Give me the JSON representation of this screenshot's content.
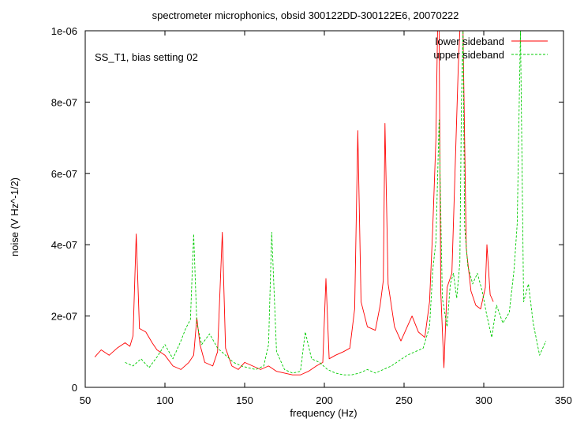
{
  "chart_data": {
    "type": "line",
    "title": "spectrometer microphonics, obsid 300122DD-300122E6, 20070222",
    "annotation": "SS_T1, bias setting 02",
    "xlabel": "frequency (Hz)",
    "ylabel": "noise (V Hz^-1/2)",
    "xlim": [
      50,
      350
    ],
    "ylim": [
      0,
      1e-06
    ],
    "x_ticks": [
      {
        "value": 50,
        "label": "50"
      },
      {
        "value": 100,
        "label": "100"
      },
      {
        "value": 150,
        "label": "150"
      },
      {
        "value": 200,
        "label": "200"
      },
      {
        "value": 250,
        "label": "250"
      },
      {
        "value": 300,
        "label": "300"
      },
      {
        "value": 350,
        "label": "350"
      }
    ],
    "y_ticks": [
      {
        "value": 0,
        "label": "0"
      },
      {
        "value": 2e-07,
        "label": "2e-07"
      },
      {
        "value": 4e-07,
        "label": "4e-07"
      },
      {
        "value": 6e-07,
        "label": "6e-07"
      },
      {
        "value": 8e-07,
        "label": "8e-07"
      },
      {
        "value": 1e-06,
        "label": "1e-06"
      }
    ],
    "grid": false,
    "legend_position": "top-right",
    "series": [
      {
        "name": "lower sideband",
        "color": "#ff0000",
        "dash": "solid",
        "x": [
          56,
          60,
          65,
          70,
          75,
          78,
          80,
          82,
          84,
          88,
          92,
          95,
          100,
          105,
          110,
          115,
          118,
          120,
          122,
          125,
          130,
          133,
          136,
          138,
          142,
          146,
          150,
          155,
          160,
          165,
          170,
          175,
          180,
          185,
          190,
          195,
          199,
          201,
          203,
          207,
          212,
          216,
          219,
          221,
          223,
          227,
          232,
          235,
          237,
          238,
          240,
          244,
          248,
          252,
          255,
          259,
          263,
          266,
          268,
          270,
          271,
          272,
          273,
          275,
          277,
          280,
          284,
          285,
          286,
          287,
          289,
          292,
          295,
          298,
          301,
          302,
          304,
          306
        ],
        "y": [
          8.5e-08,
          1.05e-07,
          9e-08,
          1.1e-07,
          1.25e-07,
          1.15e-07,
          1.45e-07,
          4.3e-07,
          1.65e-07,
          1.55e-07,
          1.25e-07,
          1.05e-07,
          9e-08,
          6e-08,
          5e-08,
          7e-08,
          9e-08,
          1.95e-07,
          1.2e-07,
          7e-08,
          6e-08,
          1e-07,
          4.35e-07,
          1.1e-07,
          6e-08,
          5e-08,
          7e-08,
          6e-08,
          5e-08,
          6e-08,
          4.5e-08,
          4e-08,
          3.5e-08,
          3.5e-08,
          4.5e-08,
          6e-08,
          7e-08,
          3.05e-07,
          8e-08,
          9e-08,
          1e-07,
          1.1e-07,
          2.2e-07,
          7.2e-07,
          2.4e-07,
          1.7e-07,
          1.6e-07,
          2.3e-07,
          3e-07,
          7.4e-07,
          2.9e-07,
          1.7e-07,
          1.3e-07,
          1.7e-07,
          2e-07,
          1.55e-07,
          1.4e-07,
          2.4e-07,
          4.5e-07,
          7e-07,
          1e-06,
          1e-06,
          2.7e-07,
          5.5e-08,
          2.8e-07,
          3.2e-07,
          9e-07,
          1e-06,
          1e-06,
          1e-06,
          3.9e-07,
          2.7e-07,
          2.3e-07,
          2.2e-07,
          2.8e-07,
          4e-07,
          2.6e-07,
          2.4e-07
        ]
      },
      {
        "name": "upper sideband",
        "color": "#00cc00",
        "dash": "dashed",
        "x": [
          75,
          80,
          85,
          90,
          95,
          100,
          105,
          110,
          113,
          116,
          118,
          120,
          123,
          128,
          133,
          138,
          143,
          148,
          152,
          157,
          162,
          165,
          167,
          170,
          175,
          180,
          185,
          188,
          192,
          197,
          202,
          207,
          212,
          217,
          222,
          227,
          232,
          237,
          242,
          247,
          252,
          257,
          262,
          266,
          268,
          270,
          271,
          272,
          274,
          277,
          279,
          281,
          283,
          285,
          286,
          287,
          288,
          290,
          293,
          296,
          299,
          302,
          305,
          308,
          312,
          316,
          319,
          321,
          322,
          323,
          325,
          328,
          331,
          335,
          339
        ],
        "y": [
          7e-08,
          6e-08,
          8e-08,
          5.5e-08,
          8.5e-08,
          1.2e-07,
          8e-08,
          1.3e-07,
          1.65e-07,
          1.9e-07,
          4.3e-07,
          1.8e-07,
          1.2e-07,
          1.5e-07,
          1.1e-07,
          9e-08,
          7e-08,
          6e-08,
          5.5e-08,
          5e-08,
          6e-08,
          1.2e-07,
          4.35e-07,
          1e-07,
          5e-08,
          4e-08,
          4.5e-08,
          1.55e-07,
          8e-08,
          7e-08,
          5e-08,
          4e-08,
          3.5e-08,
          3.5e-08,
          4e-08,
          5e-08,
          4e-08,
          5e-08,
          6e-08,
          7.5e-08,
          9e-08,
          1e-07,
          1.1e-07,
          1.7e-07,
          3.3e-07,
          4.1e-07,
          5.8e-07,
          7.5e-07,
          2.5e-07,
          1.7e-07,
          2.9e-07,
          3.2e-07,
          2.5e-07,
          3.5e-07,
          8e-07,
          1e-06,
          4.5e-07,
          3.4e-07,
          2.9e-07,
          3.2e-07,
          2.7e-07,
          2e-07,
          1.4e-07,
          2.3e-07,
          1.8e-07,
          2.1e-07,
          3.3e-07,
          4.6e-07,
          7.3e-07,
          1e-06,
          2.4e-07,
          2.9e-07,
          1.8e-07,
          9e-08,
          1.3e-07
        ]
      }
    ]
  }
}
